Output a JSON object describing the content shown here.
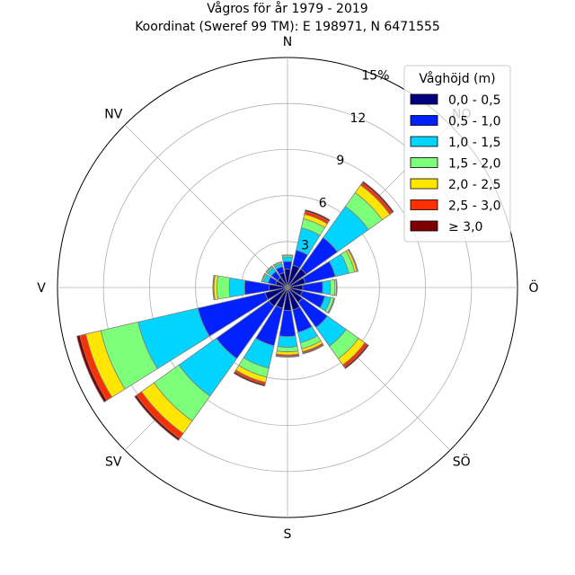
{
  "chart_data": {
    "type": "windrose",
    "title": "Vågros för år 1979 - 2019",
    "subtitle": "Koordinat (Sweref 99 TM): E 198971, N 6471555",
    "directions": [
      "N",
      "NNO",
      "NO",
      "ONO",
      "Ö",
      "OSO",
      "SÖ",
      "SSO",
      "S",
      "SSV",
      "SV",
      "VSV",
      "V",
      "VNV",
      "NV",
      "NNV"
    ],
    "compass_labels": {
      "N": "N",
      "NO": "NO",
      "O": "Ö",
      "SO": "SÖ",
      "S": "S",
      "SV": "SV",
      "V": "V",
      "NV": "NV"
    },
    "radial_ticks": [
      "3",
      "6",
      "9",
      "12",
      "15%"
    ],
    "radial_tick_values": [
      3,
      6,
      9,
      12,
      15
    ],
    "rmax": 15,
    "legend_title": "Våghöjd (m)",
    "legend_position": "top-right",
    "grid": true,
    "colors": {
      "bin_colors": [
        "#00007f",
        "#0020ff",
        "#00d4ff",
        "#7cff79",
        "#ffe600",
        "#ff3000",
        "#7f0000"
      ],
      "edge": "#7f7f7f",
      "grid": "#b0b0b0"
    },
    "series": [
      {
        "name": "0,0 - 0,5",
        "values": [
          1.2,
          1.5,
          1.5,
          1.2,
          1.0,
          1.0,
          1.2,
          1.5,
          1.5,
          1.4,
          1.5,
          1.5,
          1.2,
          0.8,
          0.8,
          1.0
        ]
      },
      {
        "name": "0,5 - 1,0",
        "values": [
          0.5,
          1.0,
          2.5,
          2.0,
          1.3,
          1.5,
          2.0,
          1.5,
          1.7,
          2.5,
          4.2,
          4.5,
          1.6,
          0.5,
          0.5,
          0.4
        ]
      },
      {
        "name": "1,0 - 1,5",
        "values": [
          0.3,
          1.5,
          2.5,
          0.9,
          0.5,
          0.4,
          1.5,
          0.7,
          0.7,
          1.5,
          3.0,
          4.0,
          1.0,
          0.3,
          0.3,
          0.2
        ]
      },
      {
        "name": "1,5 - 2,0",
        "values": [
          0.1,
          0.6,
          1.1,
          0.4,
          0.3,
          0.2,
          1.0,
          0.4,
          0.3,
          0.6,
          2.0,
          2.5,
          0.8,
          0.1,
          0.1,
          0.1
        ]
      },
      {
        "name": "2,0 - 2,5",
        "values": [
          0.02,
          0.3,
          0.6,
          0.15,
          0.1,
          0.05,
          0.5,
          0.2,
          0.2,
          0.35,
          1.0,
          1.0,
          0.2,
          0.03,
          0.03,
          0.02
        ]
      },
      {
        "name": "2,5 - 3,0",
        "values": [
          0.01,
          0.2,
          0.2,
          0.05,
          0.03,
          0.02,
          0.2,
          0.1,
          0.1,
          0.15,
          0.4,
          0.4,
          0.05,
          0.01,
          0.01,
          0.01
        ]
      },
      {
        "name": "≥ 3,0",
        "values": [
          0.0,
          0.1,
          0.1,
          0.02,
          0.01,
          0.0,
          0.1,
          0.05,
          0.05,
          0.1,
          0.15,
          0.2,
          0.02,
          0.0,
          0.0,
          0.0
        ]
      }
    ]
  }
}
